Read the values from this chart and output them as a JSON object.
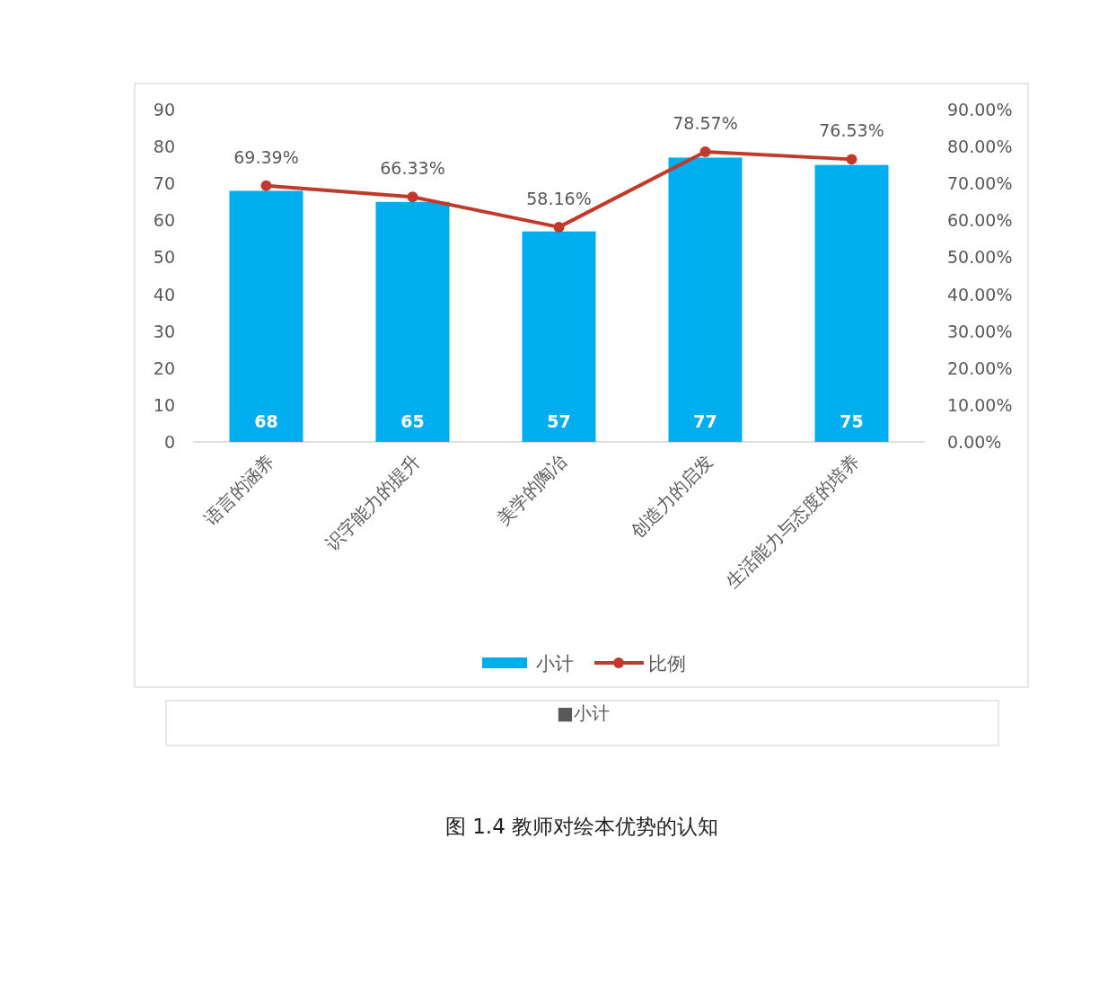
{
  "chart_data": {
    "type": "bar",
    "categories": [
      "语言的涵养",
      "识字能力的提升",
      "美学的陶冶",
      "创造力的启发",
      "生活能力与态度的培养"
    ],
    "series": [
      {
        "name": "小计",
        "color": "#00aeef",
        "values": [
          68,
          65,
          57,
          77,
          75
        ],
        "value_labels": [
          "68",
          "65",
          "57",
          "77",
          "75"
        ]
      },
      {
        "name": "比例",
        "type": "line",
        "axis": "y2",
        "color": "#c0392b",
        "marker": "circle",
        "values": [
          69.39,
          66.33,
          58.16,
          78.57,
          76.53
        ],
        "value_labels": [
          "69.39%",
          "66.33%",
          "58.16%",
          "78.57%",
          "76.53%"
        ]
      }
    ],
    "ylim": [
      0,
      90
    ],
    "yticks": [
      0,
      10,
      20,
      30,
      40,
      50,
      60,
      70,
      80,
      90
    ],
    "y2lim": [
      0,
      90
    ],
    "y2ticks": [
      {
        "value": 0,
        "label": "0.00%"
      },
      {
        "value": 10,
        "label": "10.00%"
      },
      {
        "value": 20,
        "label": "20.00%"
      },
      {
        "value": 30,
        "label": "30.00%"
      },
      {
        "value": 40,
        "label": "40.00%"
      },
      {
        "value": 50,
        "label": "50.00%"
      },
      {
        "value": 60,
        "label": "60.00%"
      },
      {
        "value": 70,
        "label": "70.00%"
      },
      {
        "value": 80,
        "label": "80.00%"
      },
      {
        "value": 90,
        "label": "90.00%"
      }
    ],
    "legend": "bottom",
    "grid": false,
    "annotations": [
      "■小计",
      "图 1.4 教师对绘本优势的认知"
    ]
  }
}
